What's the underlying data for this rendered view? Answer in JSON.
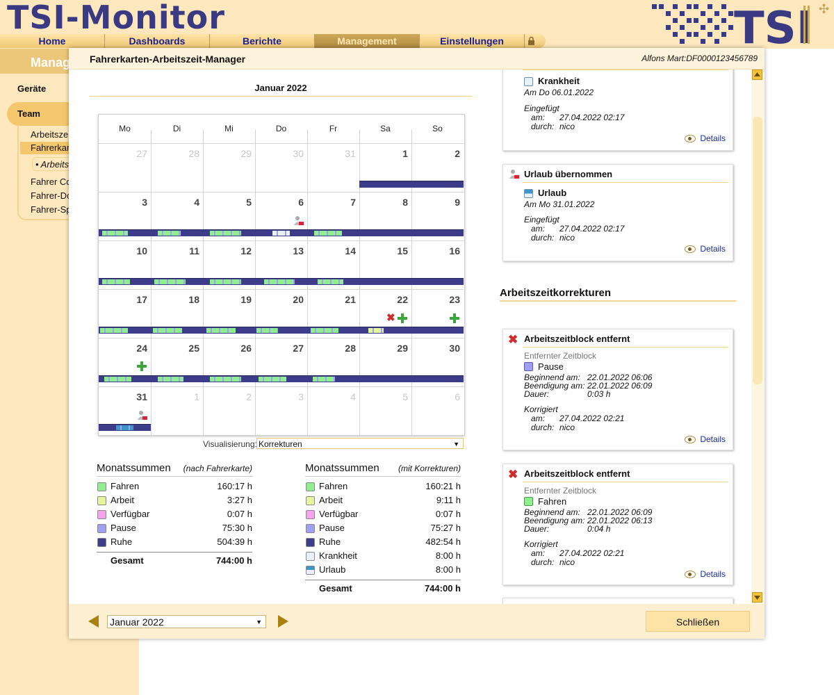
{
  "app": {
    "title": "TSI-Monitor"
  },
  "nav": {
    "items": [
      "Home",
      "Dashboards",
      "Berichte",
      "Management",
      "Einstellungen"
    ],
    "active": "Management"
  },
  "sidebar": {
    "title": "Manag",
    "items": {
      "geraete": "Geräte",
      "team": "Team",
      "sub1": "Arbeitszeit",
      "sub2": "Fahrerkart",
      "sub2a": "• Arbeitsz",
      "sub3": "Fahrer Co",
      "sub4": "Fahrer-Do",
      "sub5": "Fahrer-Sp"
    }
  },
  "modal": {
    "title": "Fahrerkarten-Arbeitszeit-Manager",
    "card_id": "Alfons Mart:DF0000123456789",
    "month_title": "Januar 2022",
    "weekdays": [
      "Mo",
      "Di",
      "Mi",
      "Do",
      "Fr",
      "Sa",
      "So"
    ],
    "weeks": [
      [
        "27",
        "28",
        "29",
        "30",
        "31",
        "1",
        "2"
      ],
      [
        "3",
        "4",
        "5",
        "6",
        "7",
        "8",
        "9"
      ],
      [
        "10",
        "11",
        "12",
        "13",
        "14",
        "15",
        "16"
      ],
      [
        "17",
        "18",
        "19",
        "20",
        "21",
        "22",
        "23"
      ],
      [
        "24",
        "25",
        "26",
        "27",
        "28",
        "29",
        "30"
      ],
      [
        "31",
        "1",
        "2",
        "3",
        "4",
        "5",
        "6"
      ]
    ],
    "visualisierung_label": "Visualisierung:",
    "visualisierung_value": "Korrekturen",
    "footer_month": "Januar 2022",
    "close_label": "Schließen"
  },
  "colors": {
    "fahren": "#8fef8f",
    "arbeit": "#e4f59a",
    "verfuegbar": "#f7a3f0",
    "pause": "#9f9ff8",
    "ruhe": "#3d3d8c",
    "krankheit": "#e8f0fa",
    "urlaub": "#3b96c9",
    "accent": "#f1c33d"
  },
  "sums_left": {
    "title": "Monatssummen",
    "subtitle": "(nach Fahrerkarte)",
    "rows": [
      {
        "label": "Fahren",
        "value": "160:17 h"
      },
      {
        "label": "Arbeit",
        "value": "3:27 h"
      },
      {
        "label": "Verfügbar",
        "value": "0:07 h"
      },
      {
        "label": "Pause",
        "value": "75:30 h"
      },
      {
        "label": "Ruhe",
        "value": "504:39 h"
      }
    ],
    "total_label": "Gesamt",
    "total_value": "744:00 h"
  },
  "sums_right": {
    "title": "Monatssummen",
    "subtitle": "(mit Korrekturen)",
    "rows": [
      {
        "label": "Fahren",
        "value": "160:21 h"
      },
      {
        "label": "Arbeit",
        "value": "9:11 h"
      },
      {
        "label": "Verfügbar",
        "value": "0:07 h"
      },
      {
        "label": "Pause",
        "value": "75:27 h"
      },
      {
        "label": "Ruhe",
        "value": "482:54 h"
      },
      {
        "label": "Krankheit",
        "value": "8:00 h"
      },
      {
        "label": "Urlaub",
        "value": "8:00 h"
      }
    ],
    "total_label": "Gesamt",
    "total_value": "744:00 h"
  },
  "right": {
    "card1": {
      "type": "Krankheit",
      "date": "Am Do 06.01.2022",
      "inserted": "Eingefügt",
      "am_label": "am:",
      "am": "27.04.2022 02:17",
      "durch_label": "durch:",
      "durch": "nico",
      "details": "Details"
    },
    "card2": {
      "head": "Urlaub übernommen",
      "type": "Urlaub",
      "date": "Am Mo 31.01.2022",
      "inserted": "Eingefügt",
      "am_label": "am:",
      "am": "27.04.2022 02:17",
      "durch_label": "durch:",
      "durch": "nico",
      "details": "Details"
    },
    "section": "Arbeitszeitkorrekturen",
    "card3": {
      "head": "Arbeitszeitblock entfernt",
      "removed": "Entfernter Zeitblock",
      "type": "Pause",
      "begin_label": "Beginnend am:",
      "begin": "22.01.2022 06:06",
      "end_label": "Beendigung am:",
      "end": "22.01.2022 06:09",
      "dur_label": "Dauer:",
      "dur": "0:03 h",
      "corr": "Korrigiert",
      "am_label": "am:",
      "am": "27.04.2022 02:21",
      "durch_label": "durch:",
      "durch": "nico",
      "details": "Details"
    },
    "card4": {
      "head": "Arbeitszeitblock entfernt",
      "removed": "Entfernter Zeitblock",
      "type": "Fahren",
      "begin_label": "Beginnend am:",
      "begin": "22.01.2022 06:09",
      "end_label": "Beendigung am:",
      "end": "22.01.2022 06:13",
      "dur_label": "Dauer:",
      "dur": "0:04 h",
      "corr": "Korrigiert",
      "am_label": "am:",
      "am": "27.04.2022 02:21",
      "durch_label": "durch:",
      "durch": "nico",
      "details": "Details"
    }
  }
}
